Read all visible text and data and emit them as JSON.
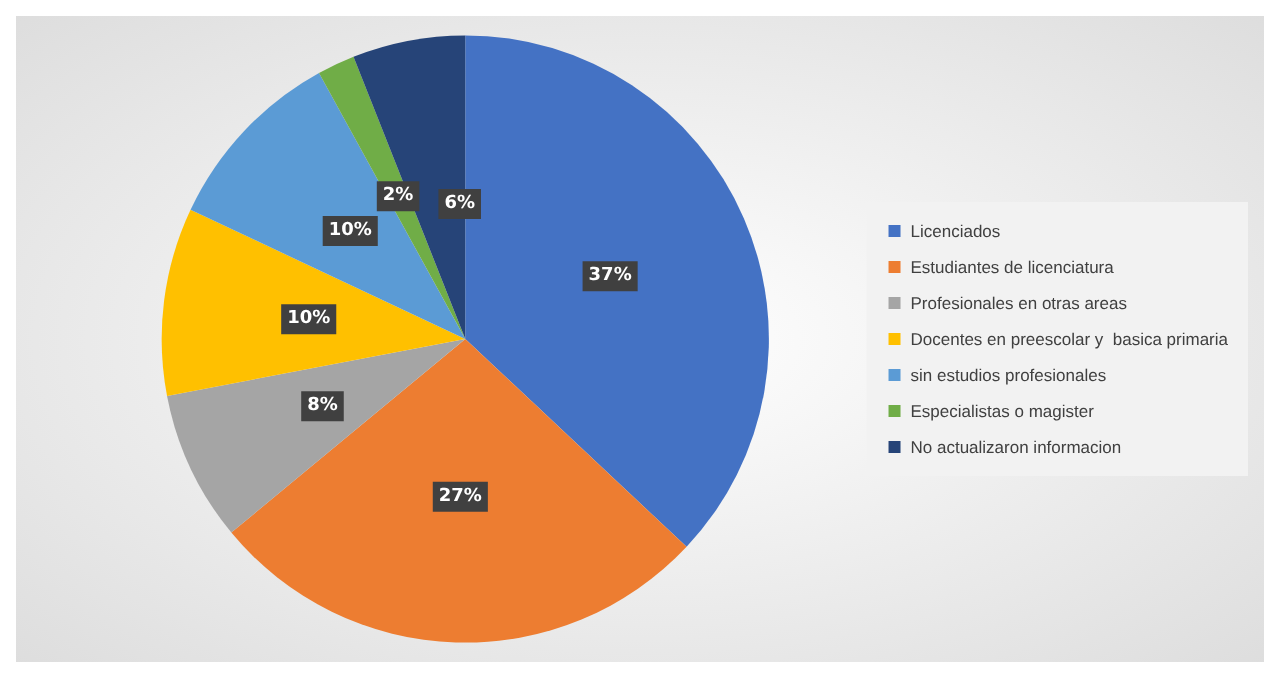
{
  "chart_data": {
    "type": "pie",
    "categories": [
      "Licenciados",
      "Estudiantes de licenciatura",
      "Profesionales en otras areas",
      "Docentes en preescolar y  basica primaria",
      "sin estudios profesionales",
      "Especialistas o magister",
      "No actualizaron informacion"
    ],
    "values": [
      37,
      27,
      8,
      10,
      10,
      2,
      6
    ],
    "colors": [
      "#4472c4",
      "#ed7d31",
      "#a5a5a5",
      "#ffc000",
      "#5b9bd5",
      "#70ad47",
      "#264478"
    ],
    "value_labels": [
      "37%",
      "27%",
      "8%",
      "10%",
      "10%",
      "2%",
      "6%"
    ],
    "legend": "right"
  }
}
